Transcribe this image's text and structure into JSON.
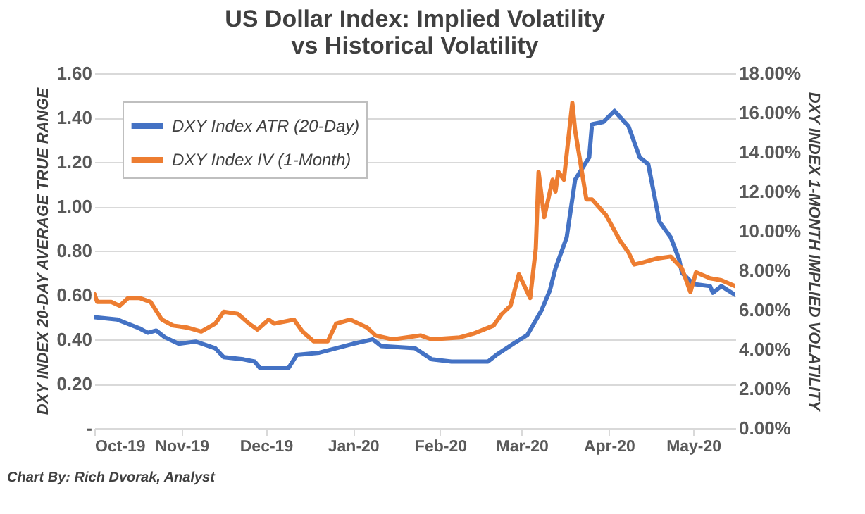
{
  "chart_data": {
    "type": "line",
    "title": [
      "US Dollar Index: Implied Volatility",
      "vs Historical Volatility"
    ],
    "ylabel": "DXY INDEX 20-DAY AVERAGE TRUE RANGE",
    "y2label": "DXY INDEX 1-MONTH IMPLIED VOLATILITY",
    "annotations": [
      "Chart By: Rich Dvorak, Analyst"
    ],
    "xlim": [
      "2019-10-01",
      "2020-05-16"
    ],
    "xticks": [
      {
        "value": "2019-10-01",
        "label": "Oct-19"
      },
      {
        "value": "2019-11-01",
        "label": "Nov-19"
      },
      {
        "value": "2019-12-01",
        "label": "Dec-19"
      },
      {
        "value": "2020-01-01",
        "label": "Jan-20"
      },
      {
        "value": "2020-02-01",
        "label": "Feb-20"
      },
      {
        "value": "2020-03-01",
        "label": "Mar-20"
      },
      {
        "value": "2020-04-01",
        "label": "Apr-20"
      },
      {
        "value": "2020-05-01",
        "label": "May-20"
      }
    ],
    "ylim": [
      0,
      1.6
    ],
    "yticks": [
      {
        "value": 0,
        "label": "-"
      },
      {
        "value": 0.2,
        "label": "0.20"
      },
      {
        "value": 0.4,
        "label": "0.40"
      },
      {
        "value": 0.6,
        "label": "0.60"
      },
      {
        "value": 0.8,
        "label": "0.80"
      },
      {
        "value": 1.0,
        "label": "1.00"
      },
      {
        "value": 1.2,
        "label": "1.20"
      },
      {
        "value": 1.4,
        "label": "1.40"
      },
      {
        "value": 1.6,
        "label": "1.60"
      }
    ],
    "y2lim": [
      0,
      18
    ],
    "y2ticks": [
      {
        "value": 0,
        "label": "0.00%"
      },
      {
        "value": 2,
        "label": "2.00%"
      },
      {
        "value": 4,
        "label": "4.00%"
      },
      {
        "value": 6,
        "label": "6.00%"
      },
      {
        "value": 8,
        "label": "8.00%"
      },
      {
        "value": 10,
        "label": "10.00%"
      },
      {
        "value": 12,
        "label": "12.00%"
      },
      {
        "value": 14,
        "label": "14.00%"
      },
      {
        "value": 16,
        "label": "16.00%"
      },
      {
        "value": 18,
        "label": "18.00%"
      }
    ],
    "grid": "y",
    "legend": "top left",
    "marker": "none",
    "line_style": "solid",
    "series": [
      {
        "name": "DXY Index ATR (20-Day)",
        "color": "#4472c4",
        "x": [
          "2019-10-01",
          "2019-10-09",
          "2019-10-13",
          "2019-10-17",
          "2019-10-20",
          "2019-10-23",
          "2019-10-26",
          "2019-10-31",
          "2019-11-06",
          "2019-11-13",
          "2019-11-16",
          "2019-11-23",
          "2019-11-27",
          "2019-11-29",
          "2019-12-04",
          "2019-12-09",
          "2019-12-12",
          "2019-12-20",
          "2019-12-26",
          "2020-01-01",
          "2020-01-08",
          "2020-01-11",
          "2020-01-23",
          "2020-01-29",
          "2020-02-05",
          "2020-02-18",
          "2020-02-21",
          "2020-02-27",
          "2020-03-03",
          "2020-03-08",
          "2020-03-11",
          "2020-03-13",
          "2020-03-17",
          "2020-03-20",
          "2020-03-25",
          "2020-03-26",
          "2020-03-30",
          "2020-04-03",
          "2020-04-08",
          "2020-04-12",
          "2020-04-15",
          "2020-04-19",
          "2020-04-23",
          "2020-04-26",
          "2020-04-27",
          "2020-05-01",
          "2020-05-07",
          "2020-05-08",
          "2020-05-11",
          "2020-05-16"
        ],
        "values": [
          0.5,
          0.49,
          0.47,
          0.45,
          0.43,
          0.44,
          0.41,
          0.38,
          0.39,
          0.36,
          0.32,
          0.31,
          0.3,
          0.27,
          0.27,
          0.27,
          0.33,
          0.34,
          0.36,
          0.38,
          0.4,
          0.37,
          0.36,
          0.31,
          0.3,
          0.3,
          0.33,
          0.38,
          0.42,
          0.53,
          0.62,
          0.72,
          0.86,
          1.12,
          1.22,
          1.37,
          1.38,
          1.43,
          1.36,
          1.22,
          1.19,
          0.93,
          0.86,
          0.76,
          0.7,
          0.65,
          0.64,
          0.61,
          0.64,
          0.6
        ]
      },
      {
        "name": "DXY Index IV (1-Month)",
        "color": "#ed7d31",
        "axis": "y2",
        "x": [
          "2019-10-01",
          "2019-10-02",
          "2019-10-07",
          "2019-10-10",
          "2019-10-13",
          "2019-10-17",
          "2019-10-21",
          "2019-10-25",
          "2019-10-29",
          "2019-11-03",
          "2019-11-08",
          "2019-11-13",
          "2019-11-16",
          "2019-11-21",
          "2019-11-25",
          "2019-11-28",
          "2019-12-02",
          "2019-12-04",
          "2019-12-11",
          "2019-12-14",
          "2019-12-18",
          "2019-12-23",
          "2019-12-26",
          "2019-12-31",
          "2020-01-06",
          "2020-01-09",
          "2020-01-15",
          "2020-01-20",
          "2020-01-25",
          "2020-01-29",
          "2020-02-08",
          "2020-02-13",
          "2020-02-20",
          "2020-02-23",
          "2020-02-26",
          "2020-02-29",
          "2020-03-04",
          "2020-03-06",
          "2020-03-07",
          "2020-03-09",
          "2020-03-12",
          "2020-03-13",
          "2020-03-14",
          "2020-03-16",
          "2020-03-19",
          "2020-03-20",
          "2020-03-24",
          "2020-03-26",
          "2020-03-31",
          "2020-04-05",
          "2020-04-08",
          "2020-04-10",
          "2020-04-13",
          "2020-04-18",
          "2020-04-23",
          "2020-04-27",
          "2020-04-30",
          "2020-05-02",
          "2020-05-07",
          "2020-05-11",
          "2020-05-16"
        ],
        "values": [
          6.8,
          6.4,
          6.4,
          6.2,
          6.6,
          6.6,
          6.4,
          5.5,
          5.2,
          5.1,
          4.9,
          5.3,
          5.9,
          5.8,
          5.3,
          5.0,
          5.5,
          5.3,
          5.5,
          4.9,
          4.4,
          4.4,
          5.3,
          5.5,
          5.1,
          4.7,
          4.5,
          4.6,
          4.7,
          4.5,
          4.6,
          4.8,
          5.2,
          5.8,
          6.2,
          7.8,
          6.6,
          9.1,
          13.0,
          10.7,
          12.6,
          12.0,
          13.0,
          12.6,
          16.5,
          15.1,
          11.6,
          11.6,
          10.8,
          9.5,
          8.9,
          8.3,
          8.4,
          8.6,
          8.7,
          8.1,
          6.9,
          7.9,
          7.6,
          7.5,
          7.2
        ]
      }
    ]
  }
}
